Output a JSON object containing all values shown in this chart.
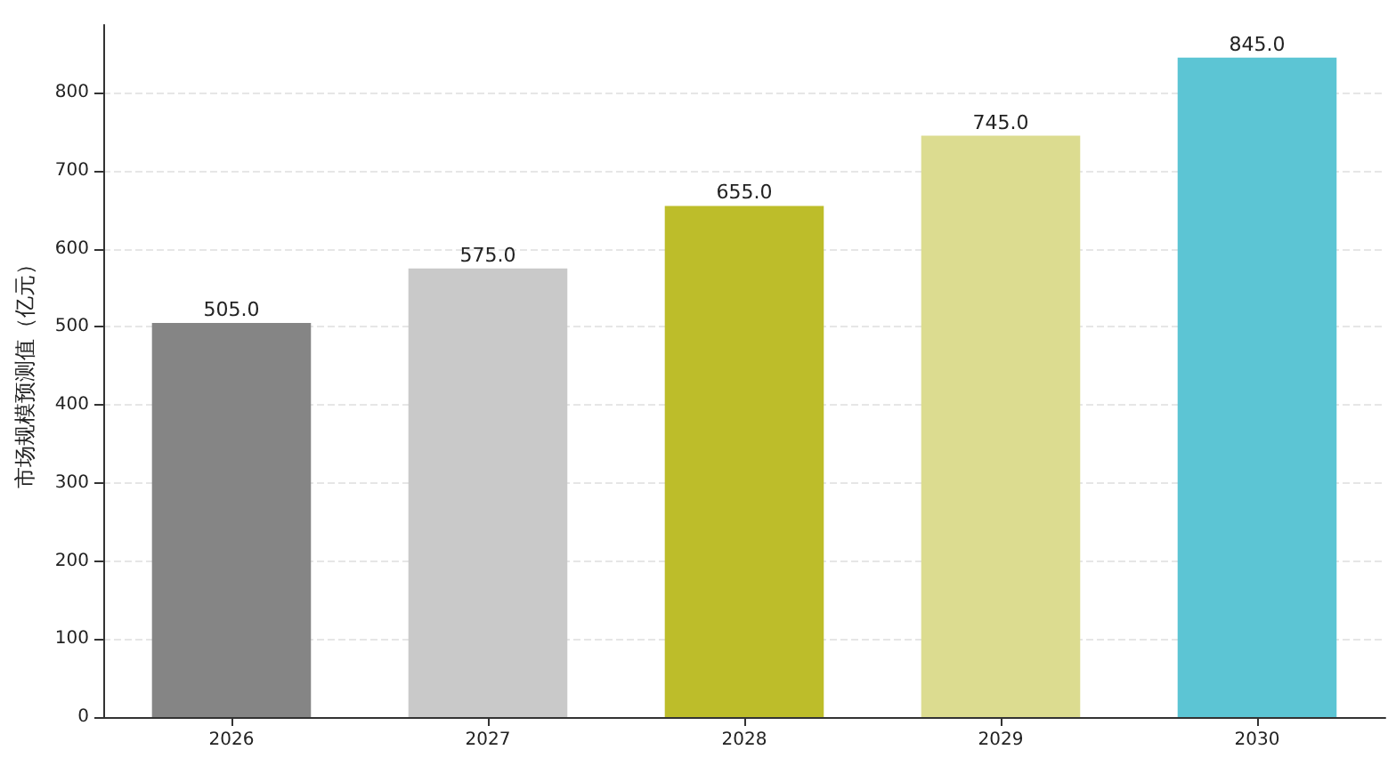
{
  "chart_data": {
    "type": "bar",
    "ylabel": "市场规模预测值（亿元）",
    "categories": [
      "2026",
      "2027",
      "2028",
      "2029",
      "2030"
    ],
    "values": [
      505,
      575,
      655,
      745,
      845
    ],
    "colors": [
      "#858585",
      "#c9c9c9",
      "#bdbd2a",
      "#dcdc90",
      "#5cc5d4"
    ],
    "value_labels": [
      "505.0",
      "575.0",
      "655.0",
      "745.0",
      "845.0"
    ],
    "ylim": [
      0,
      887
    ],
    "yticks": [
      0,
      100,
      200,
      300,
      400,
      500,
      600,
      700,
      800
    ],
    "grid": "y"
  }
}
